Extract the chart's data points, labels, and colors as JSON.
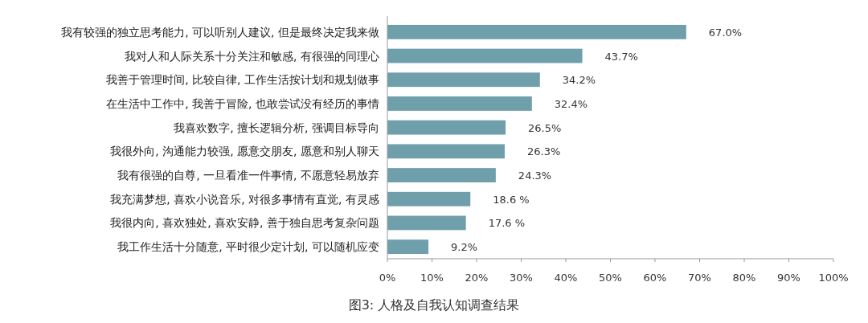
{
  "chart_data": {
    "type": "bar",
    "orientation": "horizontal",
    "color": "#6f9fab",
    "categories": [
      "我有较强的独立思考能力, 可以听别人建议, 但是最终决定我来做",
      "我对人和人际关系十分关注和敏感, 有很强的同理心",
      "我善于管理时间, 比较自律, 工作生活按计划和规划做事",
      "在生活中工作中, 我善于冒险, 也敢尝试没有经历的事情",
      "我喜欢数字, 擅长逻辑分析, 强调目标导向",
      "我很外向, 沟通能力较强, 愿意交朋友, 愿意和别人聊天",
      "我有很强的自尊, 一旦看准一件事情, 不愿意轻易放弃",
      "我充满梦想, 喜欢小说音乐, 对很多事情有直觉, 有灵感",
      "我很内向, 喜欢独处, 喜欢安静, 善于独自思考复杂问题",
      "我工作生活十分随意, 平时很少定计划, 可以随机应变"
    ],
    "values": [
      67.0,
      43.7,
      34.2,
      32.4,
      26.5,
      26.3,
      24.3,
      18.6,
      17.6,
      9.2
    ],
    "value_labels": [
      "67.0%",
      "43.7%",
      "34.2%",
      "32.4%",
      "26.5%",
      "26.3%",
      "24.3%",
      "18.6 %",
      "17.6 %",
      "9.2%"
    ],
    "xlim": [
      0,
      100
    ],
    "xticks": [
      {
        "value": 0,
        "label": "0%"
      },
      {
        "value": 10,
        "label": "10%"
      },
      {
        "value": 20,
        "label": "20%"
      },
      {
        "value": 30,
        "label": "30%"
      },
      {
        "value": 40,
        "label": "40%"
      },
      {
        "value": 50,
        "label": "50%"
      },
      {
        "value": 60,
        "label": "60%"
      },
      {
        "value": 70,
        "label": "70%"
      },
      {
        "value": 80,
        "label": "80%"
      },
      {
        "value": 90,
        "label": "90%"
      },
      {
        "value": 100,
        "label": "100%"
      }
    ],
    "grid": false,
    "annotations": [
      "图3: 人格及自我认知调查结果"
    ]
  }
}
